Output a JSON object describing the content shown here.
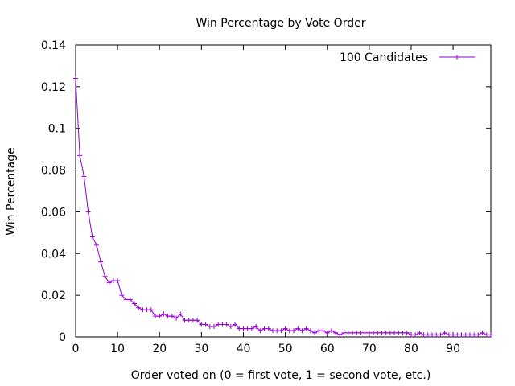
{
  "chart_data": {
    "type": "line",
    "title": "Win Percentage by Vote Order",
    "xlabel": "Order voted on (0 = first vote, 1 = second vote, etc.)",
    "ylabel": "Win Percentage",
    "xlim": [
      0,
      99
    ],
    "ylim": [
      0,
      0.14
    ],
    "xticks": [
      0,
      10,
      20,
      30,
      40,
      50,
      60,
      70,
      80,
      90
    ],
    "yticks": [
      0,
      0.02,
      0.04,
      0.06,
      0.08,
      0.1,
      0.12,
      0.14
    ],
    "ytick_labels": [
      "0",
      "0.02",
      "0.04",
      "0.06",
      "0.08",
      "0.1",
      "0.12",
      "0.14"
    ],
    "grid": false,
    "legend_position": "top-right",
    "series": [
      {
        "name": "100 Candidates",
        "color": "#9400d3",
        "marker": "plus",
        "x": [
          0,
          1,
          2,
          3,
          4,
          5,
          6,
          7,
          8,
          9,
          10,
          11,
          12,
          13,
          14,
          15,
          16,
          17,
          18,
          19,
          20,
          21,
          22,
          23,
          24,
          25,
          26,
          27,
          28,
          29,
          30,
          31,
          32,
          33,
          34,
          35,
          36,
          37,
          38,
          39,
          40,
          41,
          42,
          43,
          44,
          45,
          46,
          47,
          48,
          49,
          50,
          51,
          52,
          53,
          54,
          55,
          56,
          57,
          58,
          59,
          60,
          61,
          62,
          63,
          64,
          65,
          66,
          67,
          68,
          69,
          70,
          71,
          72,
          73,
          74,
          75,
          76,
          77,
          78,
          79,
          80,
          81,
          82,
          83,
          84,
          85,
          86,
          87,
          88,
          89,
          90,
          91,
          92,
          93,
          94,
          95,
          96,
          97,
          98,
          99
        ],
        "values": [
          0.124,
          0.087,
          0.077,
          0.06,
          0.048,
          0.044,
          0.036,
          0.029,
          0.026,
          0.027,
          0.027,
          0.02,
          0.018,
          0.018,
          0.016,
          0.014,
          0.013,
          0.013,
          0.013,
          0.01,
          0.01,
          0.011,
          0.01,
          0.01,
          0.009,
          0.011,
          0.008,
          0.008,
          0.008,
          0.008,
          0.006,
          0.006,
          0.005,
          0.005,
          0.006,
          0.006,
          0.006,
          0.005,
          0.006,
          0.004,
          0.004,
          0.004,
          0.004,
          0.005,
          0.003,
          0.004,
          0.004,
          0.003,
          0.003,
          0.003,
          0.004,
          0.003,
          0.003,
          0.004,
          0.003,
          0.004,
          0.003,
          0.002,
          0.003,
          0.003,
          0.002,
          0.003,
          0.002,
          0.001,
          0.002,
          0.002,
          0.002,
          0.002,
          0.002,
          0.002,
          0.002,
          0.002,
          0.002,
          0.002,
          0.002,
          0.002,
          0.002,
          0.002,
          0.002,
          0.002,
          0.001,
          0.001,
          0.002,
          0.001,
          0.001,
          0.001,
          0.001,
          0.001,
          0.002,
          0.001,
          0.001,
          0.001,
          0.001,
          0.001,
          0.001,
          0.001,
          0.001,
          0.002,
          0.001,
          0.001
        ]
      }
    ]
  }
}
